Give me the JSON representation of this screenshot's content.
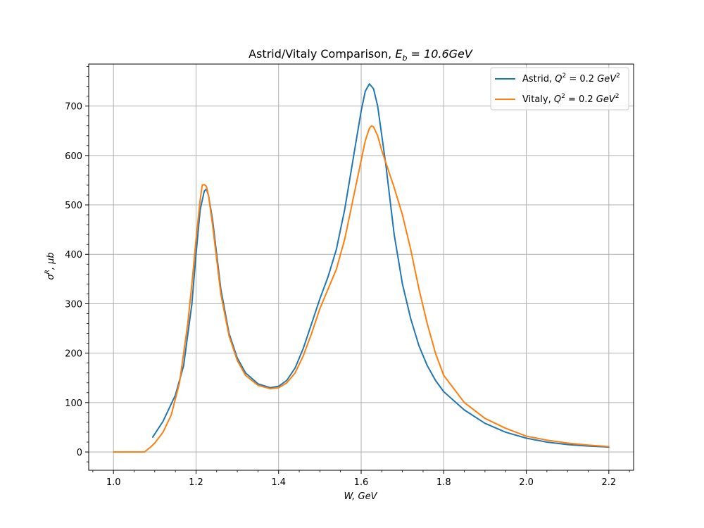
{
  "chart_data": {
    "type": "line",
    "title": "Astrid/Vitaly Comparison, ",
    "title_math_base": "E",
    "title_math_sub": "b",
    "title_math_rest": " = 10.6GeV",
    "xlabel": "W, GeV",
    "ylabel_base": "σ",
    "ylabel_sup": "R",
    "ylabel_rest": ", μb",
    "xlim": [
      0.94,
      2.26
    ],
    "ylim": [
      -37,
      785
    ],
    "xticks": [
      1.0,
      1.2,
      1.4,
      1.6,
      1.8,
      2.0,
      2.2
    ],
    "xtick_labels": [
      "1.0",
      "1.2",
      "1.4",
      "1.6",
      "1.8",
      "2.0",
      "2.2"
    ],
    "yticks": [
      0,
      100,
      200,
      300,
      400,
      500,
      600,
      700
    ],
    "ytick_labels": [
      "0",
      "100",
      "200",
      "300",
      "400",
      "500",
      "600",
      "700"
    ],
    "grid": true,
    "legend_position": "top-right",
    "series": [
      {
        "name": "Astrid, Q² = 0.2 GeV²",
        "legend_prefix": "Astrid, ",
        "color": "#1f77b4",
        "points": [
          [
            1.095,
            30
          ],
          [
            1.12,
            62
          ],
          [
            1.15,
            115
          ],
          [
            1.17,
            175
          ],
          [
            1.19,
            300
          ],
          [
            1.2,
            400
          ],
          [
            1.21,
            490
          ],
          [
            1.22,
            528
          ],
          [
            1.225,
            532
          ],
          [
            1.23,
            520
          ],
          [
            1.24,
            470
          ],
          [
            1.25,
            400
          ],
          [
            1.26,
            330
          ],
          [
            1.28,
            240
          ],
          [
            1.3,
            190
          ],
          [
            1.32,
            160
          ],
          [
            1.35,
            138
          ],
          [
            1.38,
            130
          ],
          [
            1.4,
            133
          ],
          [
            1.42,
            145
          ],
          [
            1.44,
            170
          ],
          [
            1.46,
            210
          ],
          [
            1.48,
            260
          ],
          [
            1.5,
            310
          ],
          [
            1.52,
            355
          ],
          [
            1.54,
            410
          ],
          [
            1.56,
            490
          ],
          [
            1.58,
            590
          ],
          [
            1.6,
            690
          ],
          [
            1.61,
            730
          ],
          [
            1.62,
            745
          ],
          [
            1.63,
            735
          ],
          [
            1.64,
            700
          ],
          [
            1.65,
            640
          ],
          [
            1.66,
            580
          ],
          [
            1.68,
            440
          ],
          [
            1.7,
            340
          ],
          [
            1.72,
            270
          ],
          [
            1.74,
            215
          ],
          [
            1.76,
            175
          ],
          [
            1.78,
            145
          ],
          [
            1.8,
            122
          ],
          [
            1.85,
            85
          ],
          [
            1.9,
            58
          ],
          [
            1.95,
            40
          ],
          [
            2.0,
            28
          ],
          [
            2.05,
            20
          ],
          [
            2.1,
            15
          ],
          [
            2.15,
            12
          ],
          [
            2.2,
            10
          ]
        ]
      },
      {
        "name": "Vitaly, Q² = 0.2 GeV²",
        "legend_prefix": "Vitaly, ",
        "color": "#ff7f0e",
        "points": [
          [
            1.0,
            0
          ],
          [
            1.04,
            0
          ],
          [
            1.075,
            0
          ],
          [
            1.09,
            10
          ],
          [
            1.1,
            18
          ],
          [
            1.12,
            40
          ],
          [
            1.14,
            75
          ],
          [
            1.16,
            140
          ],
          [
            1.18,
            260
          ],
          [
            1.19,
            340
          ],
          [
            1.2,
            430
          ],
          [
            1.21,
            510
          ],
          [
            1.215,
            540
          ],
          [
            1.22,
            541
          ],
          [
            1.225,
            538
          ],
          [
            1.23,
            520
          ],
          [
            1.24,
            460
          ],
          [
            1.25,
            390
          ],
          [
            1.26,
            320
          ],
          [
            1.28,
            235
          ],
          [
            1.3,
            185
          ],
          [
            1.32,
            155
          ],
          [
            1.35,
            135
          ],
          [
            1.38,
            128
          ],
          [
            1.4,
            130
          ],
          [
            1.42,
            140
          ],
          [
            1.44,
            160
          ],
          [
            1.46,
            195
          ],
          [
            1.48,
            240
          ],
          [
            1.5,
            290
          ],
          [
            1.52,
            330
          ],
          [
            1.54,
            370
          ],
          [
            1.56,
            430
          ],
          [
            1.58,
            510
          ],
          [
            1.6,
            590
          ],
          [
            1.61,
            630
          ],
          [
            1.62,
            655
          ],
          [
            1.625,
            660
          ],
          [
            1.63,
            658
          ],
          [
            1.64,
            640
          ],
          [
            1.65,
            610
          ],
          [
            1.66,
            585
          ],
          [
            1.68,
            535
          ],
          [
            1.7,
            480
          ],
          [
            1.72,
            410
          ],
          [
            1.74,
            330
          ],
          [
            1.76,
            260
          ],
          [
            1.78,
            200
          ],
          [
            1.8,
            155
          ],
          [
            1.85,
            100
          ],
          [
            1.9,
            68
          ],
          [
            1.95,
            48
          ],
          [
            2.0,
            32
          ],
          [
            2.05,
            24
          ],
          [
            2.1,
            18
          ],
          [
            2.15,
            14
          ],
          [
            2.2,
            11
          ]
        ]
      }
    ]
  }
}
